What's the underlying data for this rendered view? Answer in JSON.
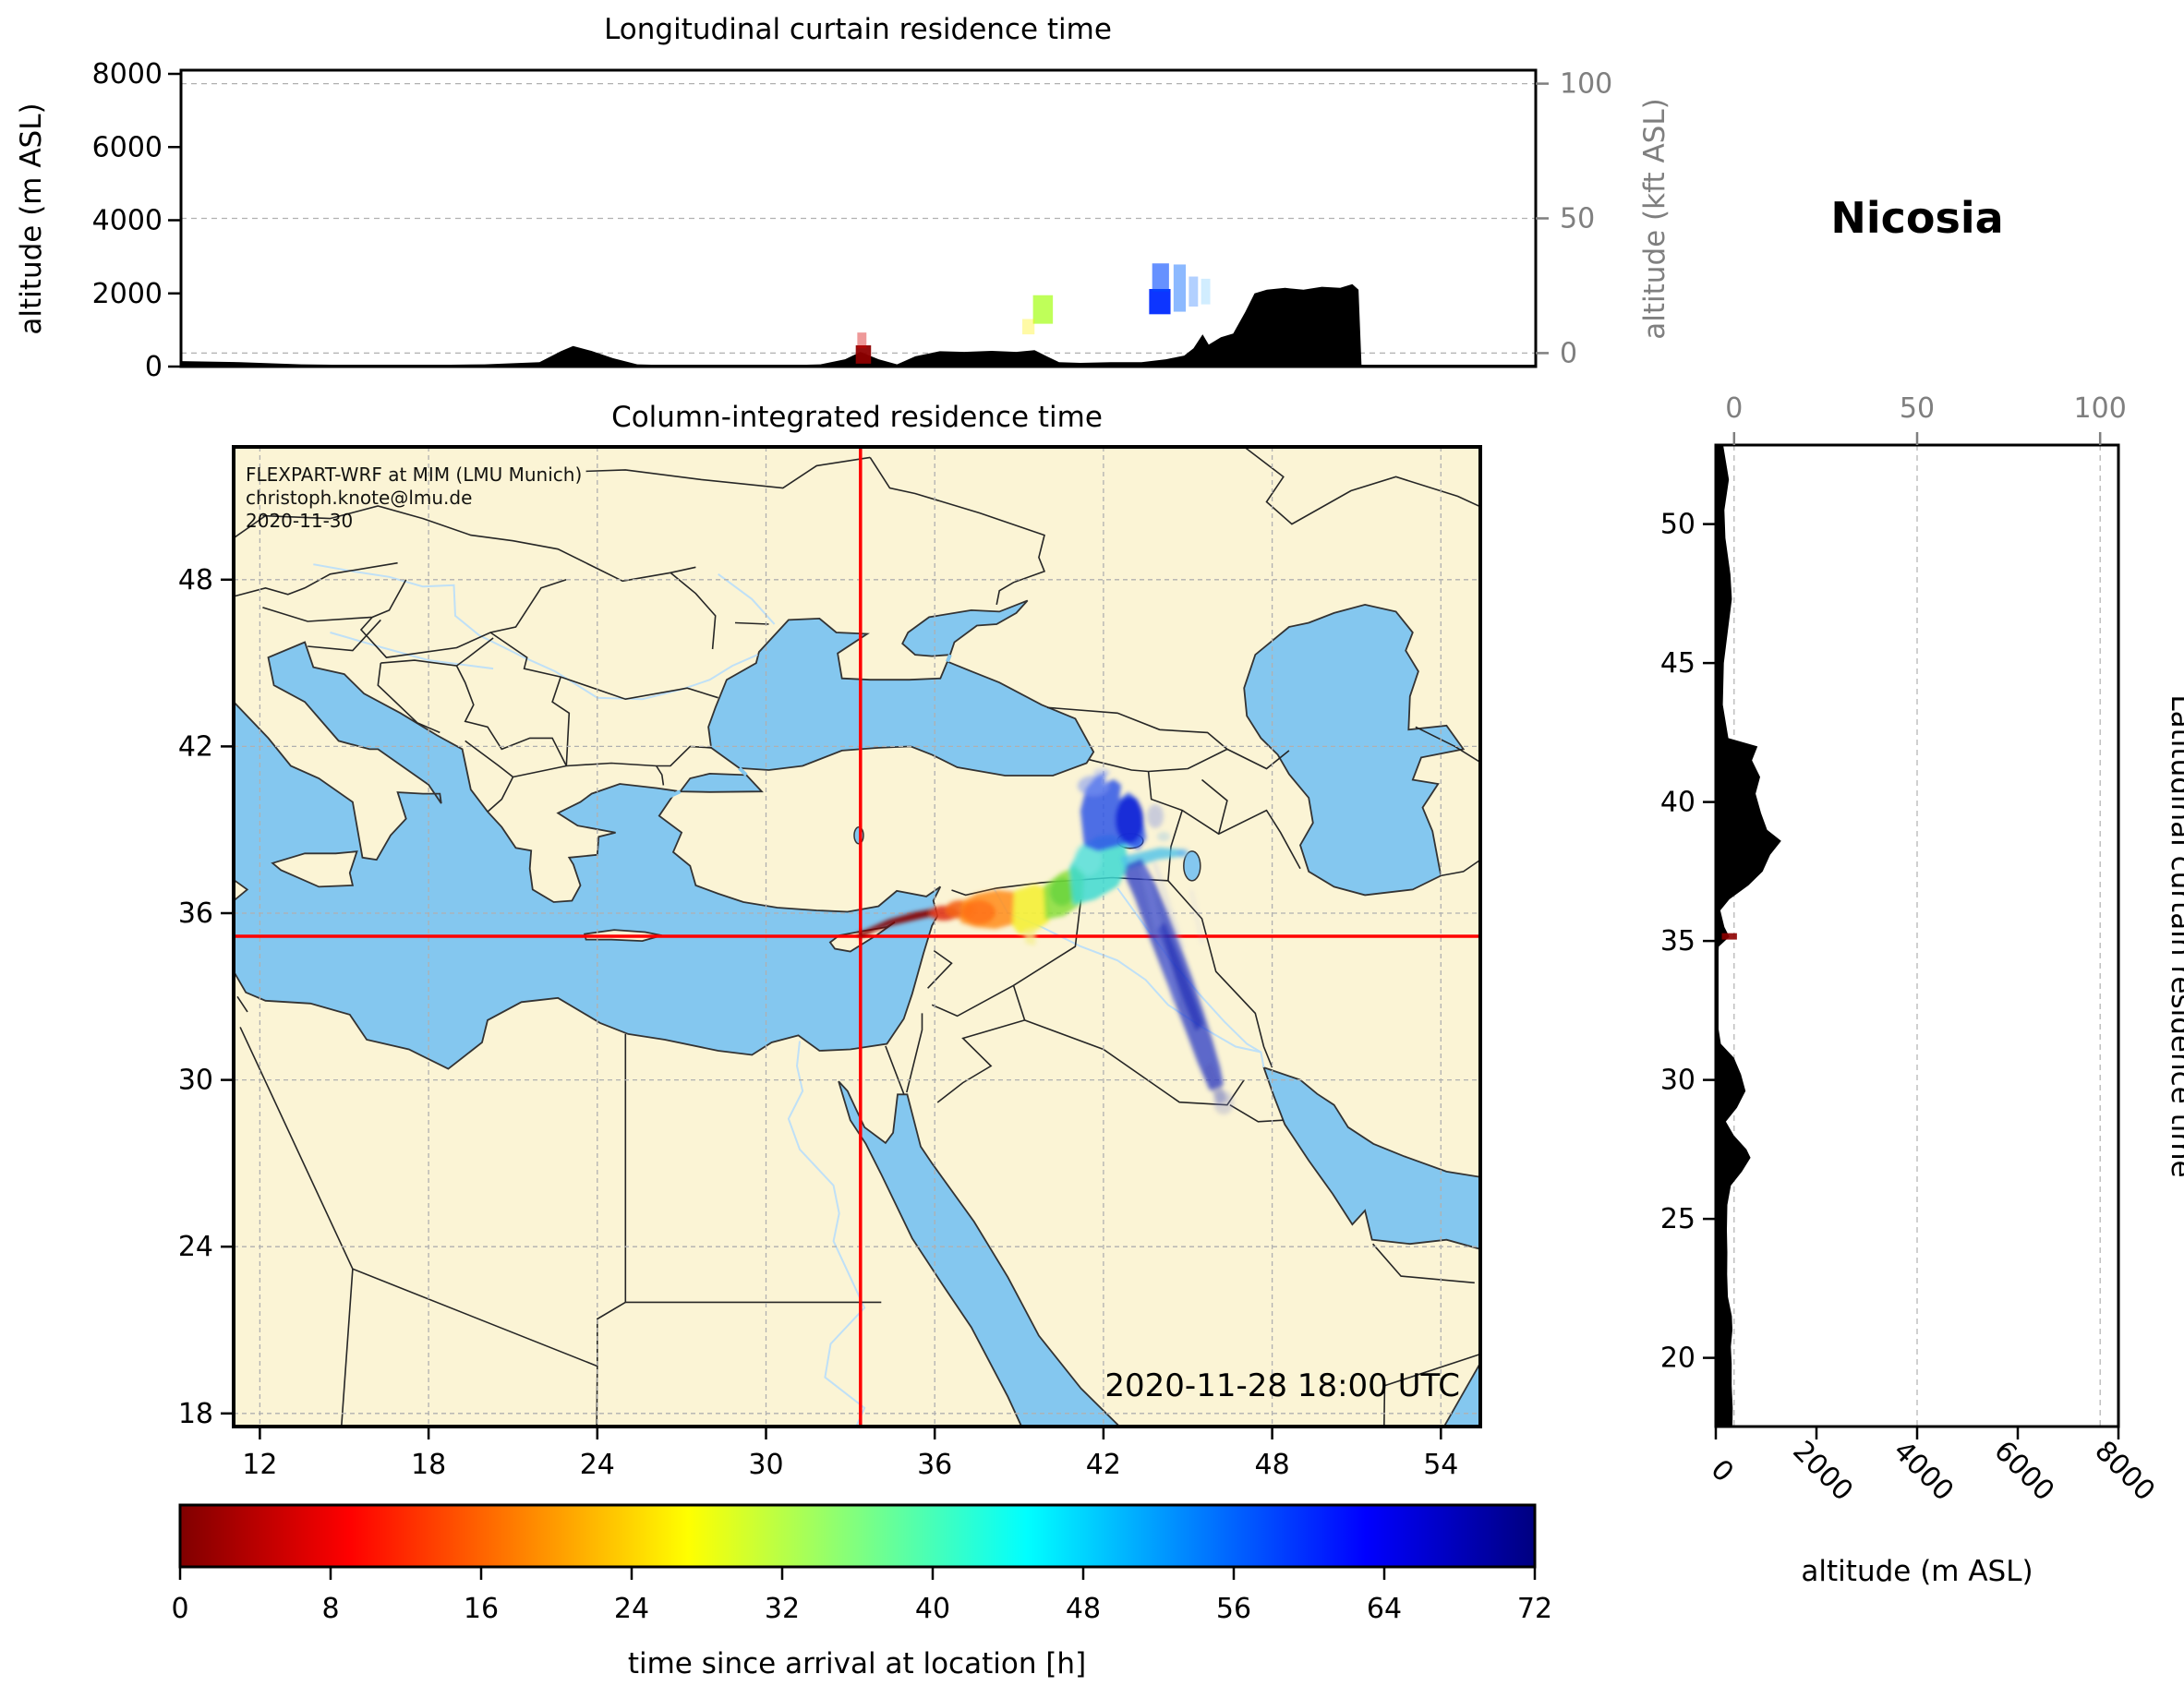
{
  "station": "Nicosia",
  "watermark": {
    "line1": "FLEXPART-WRF at MIM (LMU Munich)",
    "line2": "christoph.knote@lmu.de",
    "line3": "2020-11-30"
  },
  "top_panel": {
    "title": "Longitudinal curtain residence time",
    "ylabel": "altitude (m ASL)",
    "ylabel_right": "altitude (kft ASL)",
    "yticks": [
      0,
      2000,
      4000,
      6000,
      8000
    ],
    "right_ticks": [
      0,
      50,
      100
    ]
  },
  "map": {
    "title": "Column-integrated residence time",
    "timestamp": "2020-11-28 18:00 UTC",
    "lon_ticks": [
      12,
      18,
      24,
      30,
      36,
      42,
      48,
      54
    ],
    "lat_ticks": [
      18,
      24,
      30,
      36,
      42,
      48
    ],
    "crosshair_color": "#ff0000",
    "land_color": "#fbf4d5",
    "ocean_color": "#84c7ef"
  },
  "right_panel": {
    "ylabel_right": "Latitudinal curtain residence time",
    "xlabel": "altitude (m ASL)",
    "xticks": [
      0,
      2000,
      4000,
      6000,
      8000
    ],
    "top_ticks": [
      0,
      50,
      100
    ],
    "lat_ticks": [
      20,
      25,
      30,
      35,
      40,
      45,
      50
    ]
  },
  "colorbar": {
    "label": "time since arrival at location [h]",
    "ticks": [
      0,
      8,
      16,
      24,
      32,
      40,
      48,
      56,
      64,
      72
    ],
    "min": 0,
    "max": 72,
    "colormap": "jet_r",
    "stops": [
      [
        0,
        "#800000"
      ],
      [
        0.125,
        "#ff0000"
      ],
      [
        0.375,
        "#ffff00"
      ],
      [
        0.625,
        "#00ffff"
      ],
      [
        0.875,
        "#0000ff"
      ],
      [
        1,
        "#000080"
      ]
    ]
  },
  "chart_data": {
    "type": "heatmap",
    "subtype": "back-trajectory residence time (map + longitudinal/latitudinal curtains)",
    "station": {
      "name": "Nicosia",
      "lon": 33.36,
      "lat": 35.17
    },
    "timestamp": "2020-11-28 18:00 UTC",
    "map_extent": {
      "lon": [
        11.1,
        55.4
      ],
      "lat": [
        17.5,
        52.8
      ]
    },
    "time_since_arrival_h": [
      0,
      72
    ],
    "plume_track_lon_lat_hours": [
      [
        33.36,
        35.17,
        0
      ],
      [
        34.4,
        35.5,
        3
      ],
      [
        35.5,
        35.8,
        6
      ],
      [
        36.6,
        36.0,
        10
      ],
      [
        37.6,
        36.1,
        14
      ],
      [
        38.6,
        36.2,
        18
      ],
      [
        39.4,
        36.3,
        22
      ],
      [
        40.2,
        36.6,
        27
      ],
      [
        41.0,
        37.0,
        31
      ],
      [
        41.8,
        37.5,
        35
      ],
      [
        42.3,
        38.1,
        39
      ],
      [
        42.6,
        38.8,
        44
      ],
      [
        42.7,
        39.6,
        50
      ],
      [
        42.4,
        40.3,
        56
      ],
      [
        41.8,
        40.7,
        61
      ],
      [
        41.2,
        40.5,
        64
      ]
    ],
    "plume_branch_lon_lat_hours": [
      [
        42.9,
        37.5,
        46
      ],
      [
        43.6,
        36.2,
        50
      ],
      [
        44.3,
        34.8,
        54
      ],
      [
        44.9,
        33.4,
        58
      ],
      [
        45.4,
        32.1,
        62
      ],
      [
        45.9,
        30.8,
        66
      ],
      [
        46.3,
        29.7,
        71
      ]
    ],
    "plume_arm_lon_lat_hours": [
      [
        43.0,
        38.3,
        44
      ],
      [
        44.9,
        38.1,
        50
      ]
    ],
    "curtain_lon_patches": [
      {
        "lon": [
          33.15,
          33.65
        ],
        "alt_m": [
          80,
          580
        ],
        "hours": 1,
        "opacity": 0.95
      },
      {
        "lon": [
          33.2,
          33.5
        ],
        "alt_m": [
          500,
          930
        ],
        "hours": 6,
        "opacity": 0.4
      },
      {
        "lon": [
          38.95,
          39.6
        ],
        "alt_m": [
          1170,
          1950
        ],
        "hours": 32,
        "opacity": 0.9
      },
      {
        "lon": [
          38.6,
          39.0
        ],
        "alt_m": [
          880,
          1300
        ],
        "hours": 26,
        "opacity": 0.35
      },
      {
        "lon": [
          42.75,
          43.45
        ],
        "alt_m": [
          1430,
          2120
        ],
        "hours": 60,
        "opacity": 0.95
      },
      {
        "lon": [
          42.85,
          43.4
        ],
        "alt_m": [
          2050,
          2820
        ],
        "hours": 58,
        "opacity": 0.6
      },
      {
        "lon": [
          43.55,
          43.95
        ],
        "alt_m": [
          1500,
          2790
        ],
        "hours": 56,
        "opacity": 0.45
      },
      {
        "lon": [
          44.05,
          44.35
        ],
        "alt_m": [
          1640,
          2460
        ],
        "hours": 56,
        "opacity": 0.3
      },
      {
        "lon": [
          44.45,
          44.75
        ],
        "alt_m": [
          1700,
          2400
        ],
        "hours": 52,
        "opacity": 0.18
      }
    ],
    "curtain_lat_patches": [
      {
        "lat": [
          35.05,
          35.28
        ],
        "alt_m": [
          120,
          420
        ],
        "hours": 1,
        "opacity": 0.9
      }
    ],
    "terrain_lon_profile_m": [
      [
        11.1,
        150
      ],
      [
        13,
        120
      ],
      [
        15,
        60
      ],
      [
        18,
        30
      ],
      [
        21,
        60
      ],
      [
        22.8,
        120
      ],
      [
        23.5,
        420
      ],
      [
        23.9,
        560
      ],
      [
        24.5,
        430
      ],
      [
        25.2,
        230
      ],
      [
        26,
        60
      ],
      [
        28,
        20
      ],
      [
        30,
        20
      ],
      [
        32,
        60
      ],
      [
        32.8,
        200
      ],
      [
        33.3,
        400
      ],
      [
        33.9,
        200
      ],
      [
        34.5,
        60
      ],
      [
        35.1,
        280
      ],
      [
        35.9,
        420
      ],
      [
        36.7,
        400
      ],
      [
        37.6,
        430
      ],
      [
        38.4,
        400
      ],
      [
        39,
        450
      ],
      [
        39.4,
        280
      ],
      [
        39.8,
        120
      ],
      [
        40.5,
        100
      ],
      [
        41.5,
        120
      ],
      [
        42.5,
        120
      ],
      [
        43.3,
        200
      ],
      [
        43.9,
        300
      ],
      [
        44.2,
        500
      ],
      [
        44.5,
        880
      ],
      [
        44.7,
        600
      ],
      [
        45.1,
        800
      ],
      [
        45.5,
        900
      ],
      [
        45.9,
        1500
      ],
      [
        46.2,
        2000
      ],
      [
        46.6,
        2100
      ],
      [
        47.2,
        2150
      ],
      [
        47.8,
        2100
      ],
      [
        48.4,
        2180
      ],
      [
        49.0,
        2150
      ],
      [
        49.4,
        2250
      ],
      [
        49.6,
        2100
      ],
      [
        49.7,
        0
      ]
    ],
    "terrain_lat_profile_m": [
      [
        52.8,
        150
      ],
      [
        51.6,
        260
      ],
      [
        50.5,
        170
      ],
      [
        49.5,
        190
      ],
      [
        48.2,
        290
      ],
      [
        47.3,
        320
      ],
      [
        46.3,
        250
      ],
      [
        45,
        160
      ],
      [
        43.5,
        140
      ],
      [
        42.3,
        250
      ],
      [
        42.0,
        830
      ],
      [
        41.5,
        720
      ],
      [
        40.9,
        880
      ],
      [
        40.3,
        790
      ],
      [
        39.6,
        900
      ],
      [
        39.0,
        1020
      ],
      [
        38.6,
        1300
      ],
      [
        38.1,
        1080
      ],
      [
        37.5,
        930
      ],
      [
        37.0,
        650
      ],
      [
        36.5,
        270
      ],
      [
        36.1,
        90
      ],
      [
        35.5,
        170
      ],
      [
        35.15,
        270
      ],
      [
        34.8,
        60
      ],
      [
        34,
        30
      ],
      [
        33,
        30
      ],
      [
        32,
        40
      ],
      [
        31.3,
        100
      ],
      [
        30.8,
        360
      ],
      [
        30.2,
        500
      ],
      [
        29.6,
        590
      ],
      [
        29.0,
        420
      ],
      [
        28.5,
        200
      ],
      [
        28.0,
        360
      ],
      [
        27.5,
        610
      ],
      [
        27.2,
        690
      ],
      [
        26.7,
        520
      ],
      [
        26.2,
        300
      ],
      [
        25.5,
        230
      ],
      [
        24.6,
        220
      ],
      [
        23.8,
        230
      ],
      [
        23,
        225
      ],
      [
        22.2,
        240
      ],
      [
        21.5,
        320
      ],
      [
        21.0,
        330
      ],
      [
        20.4,
        300
      ],
      [
        19.8,
        315
      ],
      [
        19.0,
        315
      ],
      [
        18.2,
        335
      ],
      [
        17.5,
        330
      ]
    ]
  }
}
